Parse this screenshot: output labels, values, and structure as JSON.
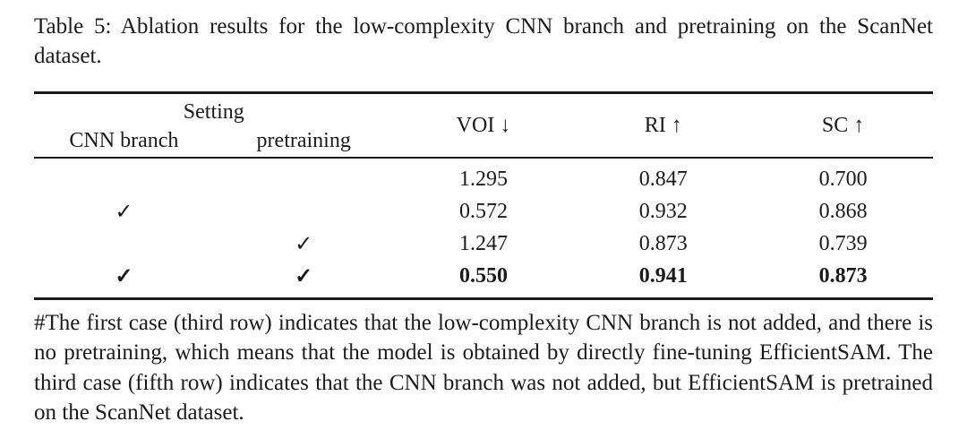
{
  "caption": "Table 5: Ablation results for the low-complexity CNN branch and pretraining on the ScanNet dataset.",
  "table": {
    "header": {
      "setting_label": "Setting",
      "sub_columns": [
        "CNN branch",
        "pretraining"
      ],
      "metric_columns": [
        {
          "label": "VOI",
          "arrow": "↓"
        },
        {
          "label": "RI",
          "arrow": "↑"
        },
        {
          "label": "SC",
          "arrow": "↑"
        }
      ]
    },
    "rows": [
      {
        "cnn_branch": "",
        "pretraining": "",
        "voi": "1.295",
        "ri": "0.847",
        "sc": "0.700"
      },
      {
        "cnn_branch": "✓",
        "pretraining": "",
        "voi": "0.572",
        "ri": "0.932",
        "sc": "0.868"
      },
      {
        "cnn_branch": "",
        "pretraining": "✓",
        "voi": "1.247",
        "ri": "0.873",
        "sc": "0.739"
      },
      {
        "cnn_branch": "✓",
        "pretraining": "✓",
        "voi": "0.550",
        "ri": "0.941",
        "sc": "0.873"
      }
    ]
  },
  "footnote": "#The first case (third row) indicates that the low-complexity CNN branch is not added, and there is no pretraining, which means that the model is obtained by directly fine-tuning EfficientSAM. The third case (fifth row) indicates that the CNN branch was not added, but EfficientSAM is pretrained on the ScanNet dataset.",
  "colors": {
    "background": "#ffffff",
    "text": "#1b1b1b",
    "rule": "#1b1b1b"
  }
}
